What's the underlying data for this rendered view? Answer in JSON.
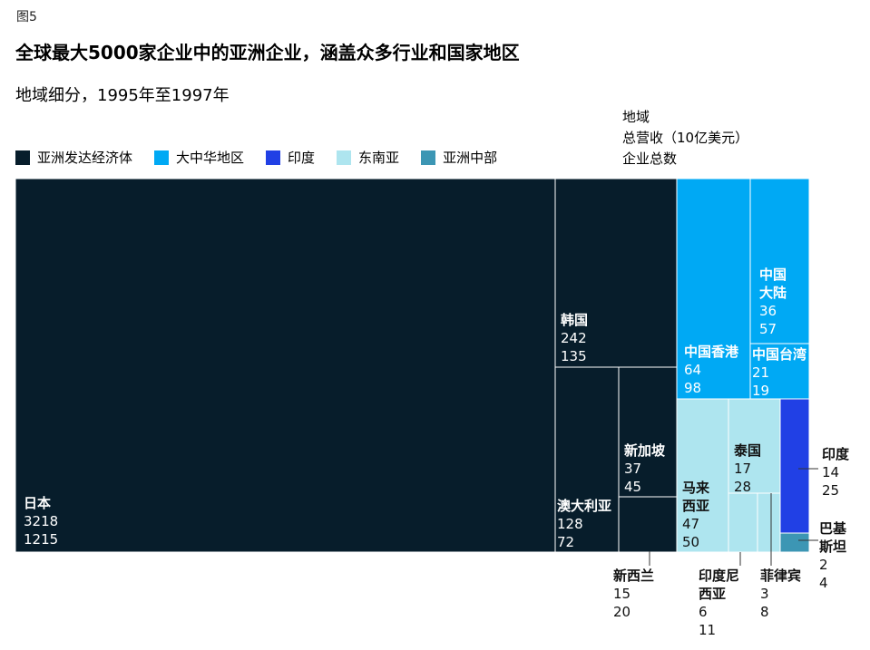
{
  "figure_label": "图5",
  "chart_data": {
    "type": "treemap",
    "title": "全球最大5000家企业中的亚洲企业，涵盖众多行业和国家地区",
    "subtitle": "地域细分，1995年至1997年",
    "key": [
      "地域",
      "总营收（10亿美元）",
      "企业总数"
    ],
    "legend": [
      {
        "name": "亚洲发达经济体",
        "color": "#071d2b"
      },
      {
        "name": "大中华地区",
        "color": "#00a9f4"
      },
      {
        "name": "印度",
        "color": "#2140e5"
      },
      {
        "name": "东南亚",
        "color": "#aee5ef"
      },
      {
        "name": "亚洲中部",
        "color": "#3c96b4"
      }
    ],
    "items": [
      {
        "region": "日本",
        "group": "亚洲发达经济体",
        "revenue": "3218",
        "companies": "1215"
      },
      {
        "region": "韩国",
        "group": "亚洲发达经济体",
        "revenue": "242",
        "companies": "135"
      },
      {
        "region": "澳大利亚",
        "group": "亚洲发达经济体",
        "revenue": "128",
        "companies": "72"
      },
      {
        "region": "新加坡",
        "group": "亚洲发达经济体",
        "revenue": "37",
        "companies": "45"
      },
      {
        "region": "新西兰",
        "group": "亚洲发达经济体",
        "revenue": "15",
        "companies": "20"
      },
      {
        "region": "中国香港",
        "group": "大中华地区",
        "revenue": "64",
        "companies": "98"
      },
      {
        "region": "中国大陆",
        "group": "大中华地区",
        "revenue": "36",
        "companies": "57"
      },
      {
        "region": "中国台湾",
        "group": "大中华地区",
        "revenue": "21",
        "companies": "19"
      },
      {
        "region": "马来西亚",
        "group": "东南亚",
        "revenue": "47",
        "companies": "50"
      },
      {
        "region": "泰国",
        "group": "东南亚",
        "revenue": "17",
        "companies": "28"
      },
      {
        "region": "印度尼西亚",
        "group": "东南亚",
        "revenue": "6",
        "companies": "11"
      },
      {
        "region": "菲律宾",
        "group": "东南亚",
        "revenue": "3",
        "companies": "8"
      },
      {
        "region": "印度",
        "group": "印度",
        "revenue": "14",
        "companies": "25"
      },
      {
        "region": "巴基斯坦",
        "group": "亚洲中部",
        "revenue": "2",
        "companies": "4"
      }
    ]
  }
}
